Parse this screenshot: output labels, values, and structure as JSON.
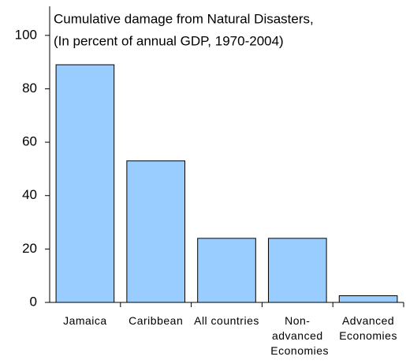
{
  "chart_data": {
    "type": "bar",
    "title": "Cumulative damage from Natural Disasters,",
    "subtitle": "(In percent of annual GDP, 1970-2004)",
    "categories": [
      "Jamaica",
      "Caribbean",
      "All countries",
      "Non-advanced Economies",
      "Advanced Economies"
    ],
    "values": [
      89,
      53,
      24,
      24,
      2.5
    ],
    "color": "#99ccff",
    "ylim": [
      0,
      110
    ],
    "yticks": [
      0,
      20,
      40,
      60,
      80,
      100
    ],
    "grid": false
  }
}
